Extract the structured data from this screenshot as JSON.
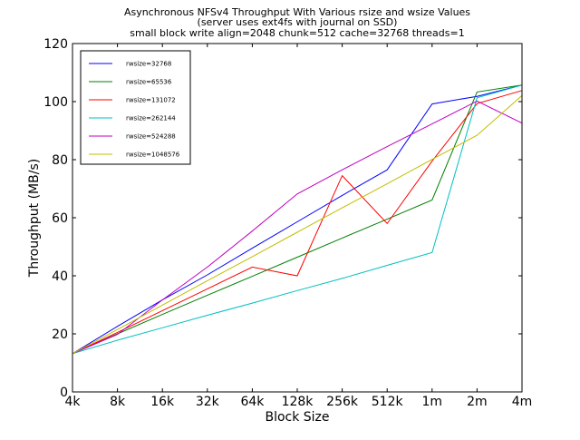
{
  "chart_data": {
    "type": "line",
    "title_lines": [
      "Asynchronous NFSv4 Throughput With Various rsize and wsize Values",
      "(server uses ext4fs with journal on SSD)",
      "small block write align=2048 chunk=512 cache=32768 threads=1"
    ],
    "xlabel": "Block Size",
    "ylabel": "Throughput (MB/s)",
    "categories": [
      "4k",
      "8k",
      "16k",
      "32k",
      "64k",
      "128k",
      "256k",
      "512k",
      "1m",
      "2m",
      "4m"
    ],
    "yticks": [
      0,
      20,
      40,
      60,
      80,
      100,
      120
    ],
    "ylim": [
      0,
      120
    ],
    "grid": false,
    "legend_position": "top-left",
    "series": [
      {
        "name": "rwsize=32768",
        "color": "#0000ff",
        "values": [
          13.2,
          22.6,
          31.7,
          40.3,
          49.5,
          58.6,
          67.7,
          76.5,
          99.2,
          101.8,
          105.7
        ]
      },
      {
        "name": "rwsize=65536",
        "color": "#008000",
        "values": [
          13.2,
          20.0,
          26.7,
          33.3,
          39.8,
          46.4,
          53.0,
          59.5,
          66.1,
          103.3,
          105.7
        ]
      },
      {
        "name": "rwsize=131072",
        "color": "#ff0000",
        "values": [
          13.2,
          20.5,
          28.0,
          35.5,
          43.0,
          40.0,
          74.5,
          58.0,
          79.5,
          99.3,
          103.8
        ]
      },
      {
        "name": "rwsize=262144",
        "color": "#00bfbf",
        "values": [
          13.2,
          17.8,
          22.1,
          26.4,
          30.6,
          34.9,
          39.1,
          43.6,
          48.0,
          101.3,
          105.7
        ]
      },
      {
        "name": "rwsize=524288",
        "color": "#bf00bf",
        "values": [
          13.2,
          19.8,
          31.7,
          43.0,
          55.4,
          68.2,
          76.5,
          84.5,
          92.3,
          100.2,
          92.6
        ]
      },
      {
        "name": "rwsize=1048576",
        "color": "#bfbf00",
        "values": [
          13.2,
          21.5,
          29.9,
          38.3,
          46.6,
          55.0,
          63.4,
          71.7,
          80.1,
          88.4,
          102.1
        ]
      }
    ]
  }
}
